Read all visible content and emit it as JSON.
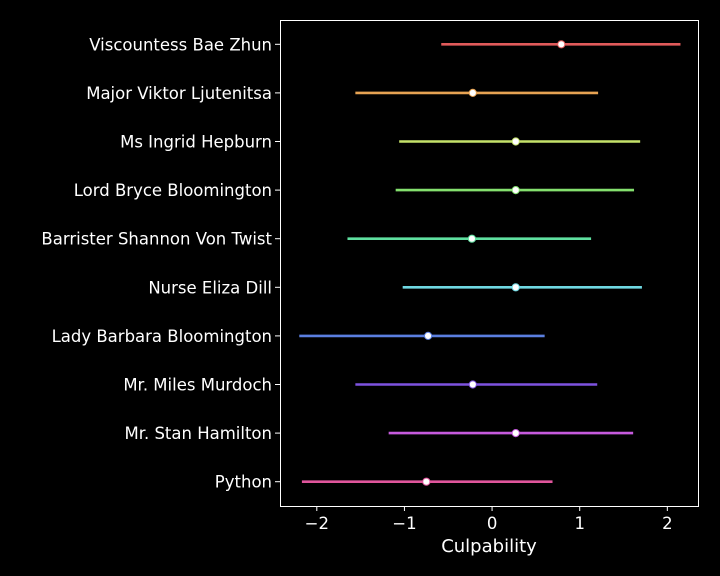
{
  "chart_data": {
    "type": "forest",
    "xlabel": "Culpability",
    "xlim": [
      -2.42,
      2.35
    ],
    "xticks": [
      {
        "value": -2,
        "label": "−2"
      },
      {
        "value": -1,
        "label": "−1"
      },
      {
        "value": 0,
        "label": "0"
      },
      {
        "value": 1,
        "label": "1"
      },
      {
        "value": 2,
        "label": "2"
      }
    ],
    "grid": false,
    "legend": "none",
    "items": [
      {
        "label": "Viscountess Bae Zhun",
        "mean": 0.79,
        "low": -0.58,
        "high": 2.15,
        "color": "#e05a5a"
      },
      {
        "label": "Major Viktor Ljutenitsa",
        "mean": -0.22,
        "low": -1.56,
        "high": 1.21,
        "color": "#e7a353"
      },
      {
        "label": "Ms Ingrid Hepburn",
        "mean": 0.27,
        "low": -1.06,
        "high": 1.69,
        "color": "#c5e26a"
      },
      {
        "label": "Lord Bryce Bloomington",
        "mean": 0.27,
        "low": -1.1,
        "high": 1.62,
        "color": "#84e06e"
      },
      {
        "label": "Barrister Shannon Von Twist",
        "mean": -0.23,
        "low": -1.65,
        "high": 1.13,
        "color": "#5fe0a0"
      },
      {
        "label": "Nurse Eliza Dill",
        "mean": 0.27,
        "low": -1.02,
        "high": 1.71,
        "color": "#6fd8e2"
      },
      {
        "label": "Lady Barbara Bloomington",
        "mean": -0.73,
        "low": -2.2,
        "high": 0.6,
        "color": "#5b7fe0"
      },
      {
        "label": "Mr. Miles Murdoch",
        "mean": -0.22,
        "low": -1.56,
        "high": 1.2,
        "color": "#7e52df"
      },
      {
        "label": "Mr. Stan Hamilton",
        "mean": 0.27,
        "low": -1.18,
        "high": 1.61,
        "color": "#c65add"
      },
      {
        "label": "Python",
        "mean": -0.75,
        "low": -2.17,
        "high": 0.69,
        "color": "#e0559c"
      }
    ]
  }
}
